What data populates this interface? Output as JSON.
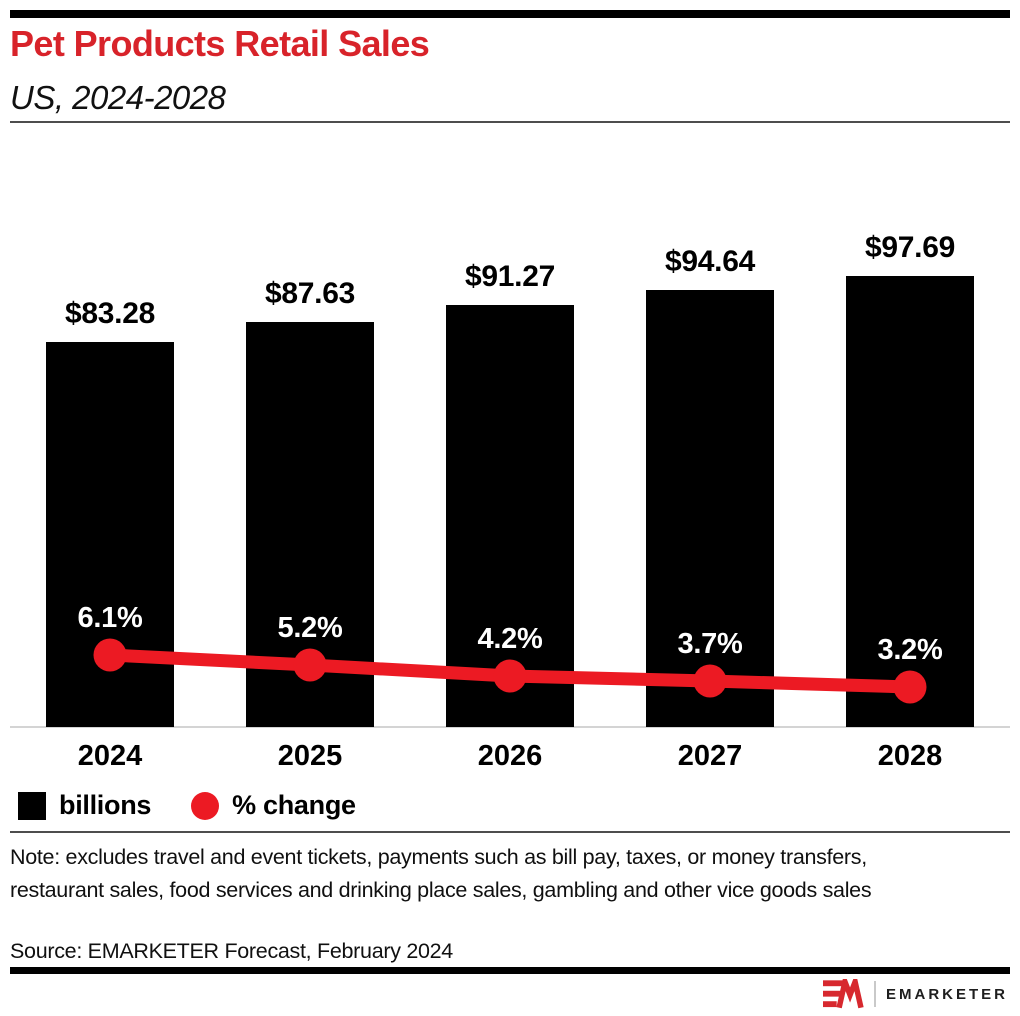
{
  "header": {
    "title": "Pet Products Retail Sales",
    "subtitle": "US, 2024-2028"
  },
  "colors": {
    "title_red": "#d8232a",
    "line_red": "#ec1a23",
    "bar_black": "#000000",
    "logo_red": "#d7282e"
  },
  "chart_data": {
    "type": "bar",
    "subtype": "bar-line-combo",
    "categories": [
      "2024",
      "2025",
      "2026",
      "2027",
      "2028"
    ],
    "series": [
      {
        "name": "billions",
        "type": "bar",
        "color": "#000000",
        "values": [
          83.28,
          87.63,
          91.27,
          94.64,
          97.69
        ],
        "labels": [
          "$83.28",
          "$87.63",
          "$91.27",
          "$94.64",
          "$97.69"
        ]
      },
      {
        "name": "% change",
        "type": "line",
        "color": "#ec1a23",
        "values": [
          6.1,
          5.2,
          4.2,
          3.7,
          3.2
        ],
        "labels": [
          "6.1%",
          "5.2%",
          "4.2%",
          "3.7%",
          "3.2%"
        ]
      }
    ],
    "legend": [
      {
        "label": "billions",
        "marker": "square",
        "color": "#000000"
      },
      {
        "label": "% change",
        "marker": "circle",
        "color": "#ec1a23"
      }
    ],
    "legend_position": "bottom-left",
    "grid": false,
    "value_axis_labels_visible": false
  },
  "footer": {
    "note": "Note: excludes travel and event tickets, payments such as bill pay, taxes, or money transfers, restaurant sales, food services and drinking place sales, gambling and other vice goods sales",
    "source": "Source: EMARKETER Forecast, February 2024"
  },
  "logo": {
    "mark": "EM",
    "text": "EMARKETER"
  }
}
